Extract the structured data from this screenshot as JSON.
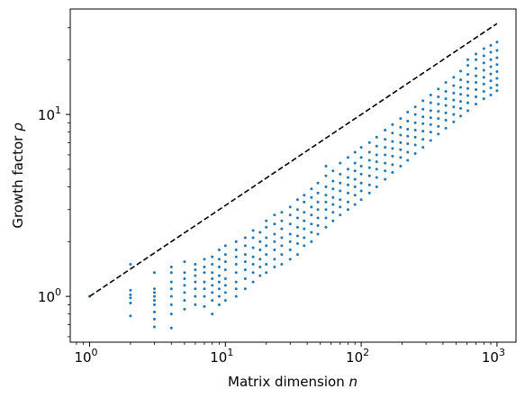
{
  "chart_data": {
    "type": "scatter",
    "xlabel": "Matrix dimension",
    "xlabel_var": "n",
    "ylabel": "Growth factor",
    "ylabel_var": "ρ",
    "xscale": "log",
    "yscale": "log",
    "xlim": [
      0.72,
      1380
    ],
    "ylim": [
      0.56,
      38
    ],
    "x_ticks": [
      {
        "value": 1,
        "base": "10",
        "exp": "0"
      },
      {
        "value": 10,
        "base": "10",
        "exp": "1"
      },
      {
        "value": 100,
        "base": "10",
        "exp": "2"
      },
      {
        "value": 1000,
        "base": "10",
        "exp": "3"
      }
    ],
    "y_ticks": [
      {
        "value": 1,
        "base": "10",
        "exp": "0"
      },
      {
        "value": 10,
        "base": "10",
        "exp": "1"
      }
    ],
    "grid": false,
    "legend": "none",
    "point_color": "#1f77b4",
    "reference_line": {
      "style": "dashed",
      "color": "#000000",
      "x": [
        1,
        1000
      ],
      "y": [
        1,
        31.6
      ]
    },
    "series": [
      {
        "points": [
          [
            1,
            1.0
          ],
          [
            2,
            0.78
          ],
          [
            2,
            0.92
          ],
          [
            2,
            0.98
          ],
          [
            2,
            1.02
          ],
          [
            2,
            1.08
          ],
          [
            2,
            1.5
          ],
          [
            3,
            0.68
          ],
          [
            3,
            0.75
          ],
          [
            3,
            0.82
          ],
          [
            3,
            0.9
          ],
          [
            3,
            0.95
          ],
          [
            3,
            1.0
          ],
          [
            3,
            1.05
          ],
          [
            3,
            1.1
          ],
          [
            3,
            1.35
          ],
          [
            4,
            0.67
          ],
          [
            4,
            0.8
          ],
          [
            4,
            0.9
          ],
          [
            4,
            1.0
          ],
          [
            4,
            1.1
          ],
          [
            4,
            1.2
          ],
          [
            4,
            1.35
          ],
          [
            4,
            1.45
          ],
          [
            5,
            0.85
          ],
          [
            5,
            0.95
          ],
          [
            5,
            1.05
          ],
          [
            5,
            1.15
          ],
          [
            5,
            1.25
          ],
          [
            5,
            1.35
          ],
          [
            5,
            1.55
          ],
          [
            6,
            0.9
          ],
          [
            6,
            1.0
          ],
          [
            6,
            1.1
          ],
          [
            6,
            1.2
          ],
          [
            6,
            1.3
          ],
          [
            6,
            1.4
          ],
          [
            6,
            1.5
          ],
          [
            7,
            0.88
          ],
          [
            7,
            1.0
          ],
          [
            7,
            1.1
          ],
          [
            7,
            1.2
          ],
          [
            7,
            1.35
          ],
          [
            7,
            1.45
          ],
          [
            7,
            1.6
          ],
          [
            8,
            0.8
          ],
          [
            8,
            0.95
          ],
          [
            8,
            1.05
          ],
          [
            8,
            1.15
          ],
          [
            8,
            1.25
          ],
          [
            8,
            1.35
          ],
          [
            8,
            1.5
          ],
          [
            8,
            1.65
          ],
          [
            9,
            0.9
          ],
          [
            9,
            1.0
          ],
          [
            9,
            1.1
          ],
          [
            9,
            1.2
          ],
          [
            9,
            1.3
          ],
          [
            9,
            1.45
          ],
          [
            9,
            1.6
          ],
          [
            9,
            1.8
          ],
          [
            10,
            0.95
          ],
          [
            10,
            1.05
          ],
          [
            10,
            1.15
          ],
          [
            10,
            1.25
          ],
          [
            10,
            1.4
          ],
          [
            10,
            1.55
          ],
          [
            10,
            1.7
          ],
          [
            10,
            1.9
          ],
          [
            12,
            1.0
          ],
          [
            12,
            1.1
          ],
          [
            12,
            1.2
          ],
          [
            12,
            1.35
          ],
          [
            12,
            1.5
          ],
          [
            12,
            1.65
          ],
          [
            12,
            1.8
          ],
          [
            12,
            2.0
          ],
          [
            14,
            1.1
          ],
          [
            14,
            1.25
          ],
          [
            14,
            1.4
          ],
          [
            14,
            1.55
          ],
          [
            14,
            1.7
          ],
          [
            14,
            1.9
          ],
          [
            14,
            2.1
          ],
          [
            16,
            1.2
          ],
          [
            16,
            1.35
          ],
          [
            16,
            1.5
          ],
          [
            16,
            1.65
          ],
          [
            16,
            1.85
          ],
          [
            16,
            2.1
          ],
          [
            16,
            2.3
          ],
          [
            18,
            1.3
          ],
          [
            18,
            1.45
          ],
          [
            18,
            1.6
          ],
          [
            18,
            1.8
          ],
          [
            18,
            2.0
          ],
          [
            18,
            2.25
          ],
          [
            20,
            1.35
          ],
          [
            20,
            1.5
          ],
          [
            20,
            1.7
          ],
          [
            20,
            1.9
          ],
          [
            20,
            2.1
          ],
          [
            20,
            2.4
          ],
          [
            20,
            2.6
          ],
          [
            23,
            1.45
          ],
          [
            23,
            1.6
          ],
          [
            23,
            1.8
          ],
          [
            23,
            2.0
          ],
          [
            23,
            2.2
          ],
          [
            23,
            2.5
          ],
          [
            23,
            2.8
          ],
          [
            26,
            1.5
          ],
          [
            26,
            1.7
          ],
          [
            26,
            1.9
          ],
          [
            26,
            2.1
          ],
          [
            26,
            2.35
          ],
          [
            26,
            2.6
          ],
          [
            26,
            2.9
          ],
          [
            30,
            1.6
          ],
          [
            30,
            1.8
          ],
          [
            30,
            2.0
          ],
          [
            30,
            2.2
          ],
          [
            30,
            2.5
          ],
          [
            30,
            2.8
          ],
          [
            30,
            3.1
          ],
          [
            34,
            1.7
          ],
          [
            34,
            1.95
          ],
          [
            34,
            2.15
          ],
          [
            34,
            2.4
          ],
          [
            34,
            2.7
          ],
          [
            34,
            3.0
          ],
          [
            34,
            3.4
          ],
          [
            38,
            1.9
          ],
          [
            38,
            2.1
          ],
          [
            38,
            2.35
          ],
          [
            38,
            2.6
          ],
          [
            38,
            2.9
          ],
          [
            38,
            3.3
          ],
          [
            38,
            3.6
          ],
          [
            43,
            2.0
          ],
          [
            43,
            2.25
          ],
          [
            43,
            2.5
          ],
          [
            43,
            2.8
          ],
          [
            43,
            3.1
          ],
          [
            43,
            3.5
          ],
          [
            43,
            3.9
          ],
          [
            48,
            2.2
          ],
          [
            48,
            2.45
          ],
          [
            48,
            2.7
          ],
          [
            48,
            3.0
          ],
          [
            48,
            3.3
          ],
          [
            48,
            3.7
          ],
          [
            48,
            4.2
          ],
          [
            55,
            2.4
          ],
          [
            55,
            2.7
          ],
          [
            55,
            3.0
          ],
          [
            55,
            3.3
          ],
          [
            55,
            3.6
          ],
          [
            55,
            4.0
          ],
          [
            55,
            4.6
          ],
          [
            55,
            5.2
          ],
          [
            62,
            2.6
          ],
          [
            62,
            2.9
          ],
          [
            62,
            3.2
          ],
          [
            62,
            3.5
          ],
          [
            62,
            3.9
          ],
          [
            62,
            4.3
          ],
          [
            62,
            4.9
          ],
          [
            70,
            2.8
          ],
          [
            70,
            3.1
          ],
          [
            70,
            3.4
          ],
          [
            70,
            3.8
          ],
          [
            70,
            4.2
          ],
          [
            70,
            4.7
          ],
          [
            70,
            5.4
          ],
          [
            80,
            3.0
          ],
          [
            80,
            3.3
          ],
          [
            80,
            3.7
          ],
          [
            80,
            4.1
          ],
          [
            80,
            4.5
          ],
          [
            80,
            5.0
          ],
          [
            80,
            5.8
          ],
          [
            90,
            3.2
          ],
          [
            90,
            3.6
          ],
          [
            90,
            4.0
          ],
          [
            90,
            4.4
          ],
          [
            90,
            4.9
          ],
          [
            90,
            5.4
          ],
          [
            90,
            6.2
          ],
          [
            100,
            3.4
          ],
          [
            100,
            3.8
          ],
          [
            100,
            4.2
          ],
          [
            100,
            4.7
          ],
          [
            100,
            5.2
          ],
          [
            100,
            5.8
          ],
          [
            100,
            6.6
          ],
          [
            115,
            3.7
          ],
          [
            115,
            4.1
          ],
          [
            115,
            4.6
          ],
          [
            115,
            5.1
          ],
          [
            115,
            5.6
          ],
          [
            115,
            6.2
          ],
          [
            115,
            7.0
          ],
          [
            130,
            4.0
          ],
          [
            130,
            4.5
          ],
          [
            130,
            5.0
          ],
          [
            130,
            5.5
          ],
          [
            130,
            6.0
          ],
          [
            130,
            6.7
          ],
          [
            130,
            7.5
          ],
          [
            150,
            4.4
          ],
          [
            150,
            4.9
          ],
          [
            150,
            5.4
          ],
          [
            150,
            6.0
          ],
          [
            150,
            6.6
          ],
          [
            150,
            7.3
          ],
          [
            150,
            8.2
          ],
          [
            170,
            4.8
          ],
          [
            170,
            5.3
          ],
          [
            170,
            5.9
          ],
          [
            170,
            6.5
          ],
          [
            170,
            7.1
          ],
          [
            170,
            7.9
          ],
          [
            170,
            8.8
          ],
          [
            195,
            5.2
          ],
          [
            195,
            5.8
          ],
          [
            195,
            6.4
          ],
          [
            195,
            7.0
          ],
          [
            195,
            7.7
          ],
          [
            195,
            8.5
          ],
          [
            195,
            9.5
          ],
          [
            220,
            5.6
          ],
          [
            220,
            6.2
          ],
          [
            220,
            6.9
          ],
          [
            220,
            7.6
          ],
          [
            220,
            8.3
          ],
          [
            220,
            9.2
          ],
          [
            220,
            10.3
          ],
          [
            250,
            6.1
          ],
          [
            250,
            6.8
          ],
          [
            250,
            7.5
          ],
          [
            250,
            8.2
          ],
          [
            250,
            9.0
          ],
          [
            250,
            10.0
          ],
          [
            250,
            11.0
          ],
          [
            285,
            6.6
          ],
          [
            285,
            7.3
          ],
          [
            285,
            8.1
          ],
          [
            285,
            8.9
          ],
          [
            285,
            9.7
          ],
          [
            285,
            10.7
          ],
          [
            285,
            11.9
          ],
          [
            325,
            7.2
          ],
          [
            325,
            8.0
          ],
          [
            325,
            8.8
          ],
          [
            325,
            9.6
          ],
          [
            325,
            10.5
          ],
          [
            325,
            11.6
          ],
          [
            325,
            12.8
          ],
          [
            370,
            7.8
          ],
          [
            370,
            8.6
          ],
          [
            370,
            9.5
          ],
          [
            370,
            10.4
          ],
          [
            370,
            11.4
          ],
          [
            370,
            12.5
          ],
          [
            370,
            13.8
          ],
          [
            420,
            8.4
          ],
          [
            420,
            9.3
          ],
          [
            420,
            10.2
          ],
          [
            420,
            11.2
          ],
          [
            420,
            12.2
          ],
          [
            420,
            13.4
          ],
          [
            420,
            15.0
          ],
          [
            480,
            9.1
          ],
          [
            480,
            10.0
          ],
          [
            480,
            11.0
          ],
          [
            480,
            12.0
          ],
          [
            480,
            13.1
          ],
          [
            480,
            14.4
          ],
          [
            480,
            16.0
          ],
          [
            540,
            9.8
          ],
          [
            540,
            10.8
          ],
          [
            540,
            11.8
          ],
          [
            540,
            12.9
          ],
          [
            540,
            14.1
          ],
          [
            540,
            15.5
          ],
          [
            540,
            17.3
          ],
          [
            610,
            10.5
          ],
          [
            610,
            11.6
          ],
          [
            610,
            12.7
          ],
          [
            610,
            13.9
          ],
          [
            610,
            15.1
          ],
          [
            610,
            16.6
          ],
          [
            610,
            18.6
          ],
          [
            610,
            20.0
          ],
          [
            700,
            11.4
          ],
          [
            700,
            12.5
          ],
          [
            700,
            13.7
          ],
          [
            700,
            15.0
          ],
          [
            700,
            16.3
          ],
          [
            700,
            17.9
          ],
          [
            700,
            20.0
          ],
          [
            700,
            21.5
          ],
          [
            800,
            12.2
          ],
          [
            800,
            13.4
          ],
          [
            800,
            14.7
          ],
          [
            800,
            16.0
          ],
          [
            800,
            17.5
          ],
          [
            800,
            19.2
          ],
          [
            800,
            21.0
          ],
          [
            800,
            23.0
          ],
          [
            900,
            12.8
          ],
          [
            900,
            14.0
          ],
          [
            900,
            15.3
          ],
          [
            900,
            16.7
          ],
          [
            900,
            18.3
          ],
          [
            900,
            20.0
          ],
          [
            900,
            22.0
          ],
          [
            900,
            24.0
          ],
          [
            1000,
            13.5
          ],
          [
            1000,
            14.5
          ],
          [
            1000,
            15.8
          ],
          [
            1000,
            17.2
          ],
          [
            1000,
            18.8
          ],
          [
            1000,
            20.5
          ],
          [
            1000,
            22.5
          ],
          [
            1000,
            25.0
          ]
        ]
      }
    ]
  }
}
